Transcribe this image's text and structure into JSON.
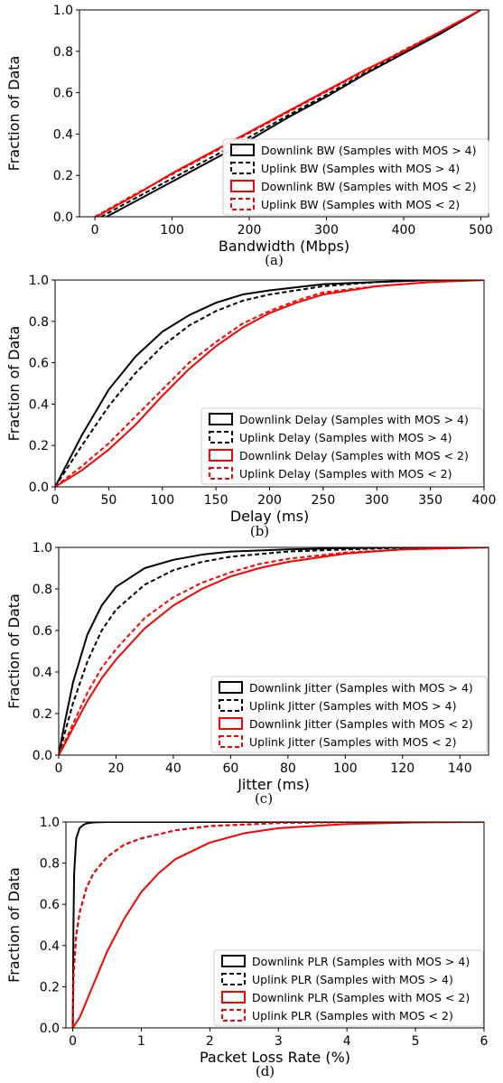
{
  "chart_data": [
    {
      "type": "line",
      "caption": "(a)",
      "xlabel": "Bandwidth (Mbps)",
      "ylabel": "Fraction of Data",
      "xlim": [
        -20,
        510
      ],
      "ylim": [
        0,
        1.0
      ],
      "xticks": [
        0,
        100,
        200,
        300,
        400,
        500
      ],
      "yticks": [
        0.0,
        0.2,
        0.4,
        0.6,
        0.8,
        1.0
      ],
      "legend_position": "lower-right",
      "series": [
        {
          "name": "Downlink BW (Samples with MOS > 4)",
          "color": "#000000",
          "dash": "solid",
          "x": [
            15,
            50,
            100,
            150,
            200,
            250,
            300,
            350,
            400,
            450,
            500
          ],
          "y": [
            0.0,
            0.07,
            0.17,
            0.27,
            0.37,
            0.48,
            0.58,
            0.69,
            0.79,
            0.89,
            1.0
          ]
        },
        {
          "name": "Uplink BW (Samples with MOS > 4)",
          "color": "#000000",
          "dash": "dashed",
          "x": [
            8,
            50,
            100,
            150,
            200,
            250,
            300,
            350,
            400,
            450,
            500
          ],
          "y": [
            0.0,
            0.085,
            0.185,
            0.285,
            0.385,
            0.49,
            0.59,
            0.695,
            0.795,
            0.895,
            1.0
          ]
        },
        {
          "name": "Downlink BW (Samples with MOS < 2)",
          "color": "#ff0000",
          "dash": "solid",
          "x": [
            2,
            50,
            100,
            150,
            200,
            250,
            300,
            350,
            400,
            450,
            500
          ],
          "y": [
            0.0,
            0.1,
            0.21,
            0.31,
            0.41,
            0.51,
            0.61,
            0.71,
            0.8,
            0.9,
            1.0
          ]
        },
        {
          "name": "Uplink BW (Samples with MOS < 2)",
          "color": "#ff0000",
          "dash": "dashed",
          "x": [
            0,
            50,
            100,
            150,
            200,
            250,
            300,
            350,
            400,
            450,
            500
          ],
          "y": [
            0.0,
            0.105,
            0.205,
            0.305,
            0.405,
            0.505,
            0.605,
            0.705,
            0.805,
            0.9,
            1.0
          ]
        }
      ]
    },
    {
      "type": "line",
      "caption": "(b)",
      "xlabel": "Delay (ms)",
      "ylabel": "Fraction of Data",
      "xlim": [
        0,
        400
      ],
      "ylim": [
        0,
        1.0
      ],
      "xticks": [
        0,
        50,
        100,
        150,
        200,
        250,
        300,
        350,
        400
      ],
      "yticks": [
        0.0,
        0.2,
        0.4,
        0.6,
        0.8,
        1.0
      ],
      "legend_position": "lower-right",
      "series": [
        {
          "name": "Downlink Delay (Samples with MOS > 4)",
          "color": "#000000",
          "dash": "solid",
          "x": [
            0,
            10,
            25,
            50,
            75,
            100,
            125,
            150,
            175,
            200,
            250,
            300,
            350,
            400
          ],
          "y": [
            0.0,
            0.1,
            0.25,
            0.47,
            0.63,
            0.75,
            0.83,
            0.89,
            0.93,
            0.95,
            0.98,
            0.99,
            1.0,
            1.0
          ]
        },
        {
          "name": "Uplink Delay (Samples with MOS > 4)",
          "color": "#000000",
          "dash": "dashed",
          "x": [
            0,
            10,
            25,
            50,
            75,
            100,
            125,
            150,
            175,
            200,
            250,
            300,
            350,
            400
          ],
          "y": [
            0.0,
            0.08,
            0.2,
            0.39,
            0.55,
            0.68,
            0.78,
            0.85,
            0.9,
            0.93,
            0.97,
            0.99,
            1.0,
            1.0
          ]
        },
        {
          "name": "Downlink Delay (Samples with MOS < 2)",
          "color": "#ff0000",
          "dash": "solid",
          "x": [
            0,
            25,
            50,
            75,
            100,
            125,
            150,
            175,
            200,
            225,
            250,
            300,
            350,
            400
          ],
          "y": [
            0.0,
            0.08,
            0.18,
            0.3,
            0.44,
            0.57,
            0.68,
            0.77,
            0.84,
            0.89,
            0.93,
            0.97,
            0.99,
            1.0
          ]
        },
        {
          "name": "Uplink Delay (Samples with MOS < 2)",
          "color": "#ff0000",
          "dash": "dashed",
          "x": [
            0,
            25,
            50,
            75,
            100,
            125,
            150,
            175,
            200,
            225,
            250,
            300,
            350,
            400
          ],
          "y": [
            0.0,
            0.1,
            0.21,
            0.34,
            0.47,
            0.6,
            0.7,
            0.79,
            0.85,
            0.9,
            0.94,
            0.97,
            0.99,
            1.0
          ]
        }
      ]
    },
    {
      "type": "line",
      "caption": "(c)",
      "xlabel": "Jitter (ms)",
      "ylabel": "Fraction of Data",
      "xlim": [
        0,
        150
      ],
      "ylim": [
        0,
        1.0
      ],
      "xticks": [
        0,
        20,
        40,
        60,
        80,
        100,
        120,
        140
      ],
      "yticks": [
        0.0,
        0.2,
        0.4,
        0.6,
        0.8,
        1.0
      ],
      "legend_position": "lower-right",
      "series": [
        {
          "name": "Downlink Jitter (Samples with MOS > 4)",
          "color": "#000000",
          "dash": "solid",
          "x": [
            0,
            2,
            5,
            10,
            15,
            20,
            30,
            40,
            50,
            60,
            80,
            100,
            120,
            150
          ],
          "y": [
            0.0,
            0.15,
            0.35,
            0.58,
            0.72,
            0.81,
            0.9,
            0.94,
            0.965,
            0.98,
            0.99,
            0.996,
            1.0,
            1.0
          ]
        },
        {
          "name": "Uplink Jitter (Samples with MOS > 4)",
          "color": "#000000",
          "dash": "dashed",
          "x": [
            0,
            2,
            5,
            10,
            15,
            20,
            30,
            40,
            50,
            60,
            80,
            100,
            120,
            150
          ],
          "y": [
            0.0,
            0.1,
            0.25,
            0.45,
            0.6,
            0.7,
            0.82,
            0.89,
            0.93,
            0.955,
            0.98,
            0.99,
            0.998,
            1.0
          ]
        },
        {
          "name": "Downlink Jitter (Samples with MOS < 2)",
          "color": "#ff0000",
          "dash": "solid",
          "x": [
            0,
            2,
            5,
            10,
            15,
            20,
            30,
            40,
            50,
            60,
            70,
            80,
            100,
            120,
            150
          ],
          "y": [
            0.0,
            0.05,
            0.13,
            0.26,
            0.37,
            0.46,
            0.61,
            0.72,
            0.8,
            0.86,
            0.9,
            0.93,
            0.97,
            0.99,
            1.0
          ]
        },
        {
          "name": "Uplink Jitter (Samples with MOS < 2)",
          "color": "#ff0000",
          "dash": "dashed",
          "x": [
            0,
            2,
            5,
            10,
            15,
            20,
            30,
            40,
            50,
            60,
            70,
            80,
            100,
            120,
            150
          ],
          "y": [
            0.0,
            0.06,
            0.15,
            0.3,
            0.42,
            0.51,
            0.66,
            0.76,
            0.83,
            0.88,
            0.92,
            0.945,
            0.975,
            0.99,
            1.0
          ]
        }
      ]
    },
    {
      "type": "line",
      "caption": "(d)",
      "xlabel": "Packet Loss Rate (%)",
      "ylabel": "Fraction of Data",
      "xlim": [
        -0.1,
        6
      ],
      "ylim": [
        0,
        1.0
      ],
      "xticks": [
        0,
        1,
        2,
        3,
        4,
        5,
        6
      ],
      "yticks": [
        0.0,
        0.2,
        0.4,
        0.6,
        0.8,
        1.0
      ],
      "legend_position": "lower-right",
      "series": [
        {
          "name": "Downlink PLR (Samples with MOS > 4)",
          "color": "#000000",
          "dash": "solid",
          "x": [
            0,
            0.01,
            0.02,
            0.05,
            0.1,
            0.15,
            0.2,
            0.3,
            0.5,
            1,
            6
          ],
          "y": [
            0.0,
            0.5,
            0.75,
            0.92,
            0.97,
            0.985,
            0.993,
            0.998,
            1.0,
            1.0,
            1.0
          ]
        },
        {
          "name": "Uplink PLR (Samples with MOS > 4)",
          "color": "#000000",
          "dash": "dashed",
          "x": [
            0,
            0.01,
            0.05,
            0.1,
            0.2,
            0.3,
            0.5,
            0.75,
            1,
            1.5,
            2,
            3,
            4,
            6
          ],
          "y": [
            0.0,
            0.25,
            0.45,
            0.56,
            0.68,
            0.75,
            0.83,
            0.89,
            0.92,
            0.96,
            0.98,
            0.995,
            1.0,
            1.0
          ]
        },
        {
          "name": "Downlink PLR (Samples with MOS < 2)",
          "color": "#ff0000",
          "dash": "solid",
          "x": [
            0,
            0.1,
            0.25,
            0.5,
            0.75,
            1,
            1.25,
            1.5,
            2,
            2.5,
            3,
            4,
            5,
            6
          ],
          "y": [
            0.0,
            0.05,
            0.17,
            0.37,
            0.53,
            0.66,
            0.75,
            0.82,
            0.9,
            0.945,
            0.97,
            0.99,
            0.998,
            1.0
          ]
        },
        {
          "name": "Uplink PLR (Samples with MOS < 2)",
          "color": "#ff0000",
          "dash": "dashed",
          "x": [
            0,
            0.01,
            0.05,
            0.1,
            0.2,
            0.3,
            0.5,
            0.75,
            1,
            1.5,
            2,
            3,
            4,
            6
          ],
          "y": [
            0.0,
            0.25,
            0.45,
            0.56,
            0.68,
            0.75,
            0.83,
            0.89,
            0.92,
            0.96,
            0.98,
            0.995,
            1.0,
            1.0
          ]
        }
      ]
    }
  ]
}
